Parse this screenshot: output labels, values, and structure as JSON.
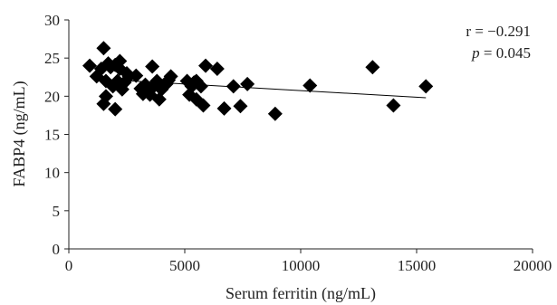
{
  "chart_data": {
    "type": "scatter",
    "xlabel": "Serum ferritin (ng/mL)",
    "ylabel": "FABP4 (ng/mL)",
    "xlim": [
      0,
      20000
    ],
    "ylim": [
      0,
      30
    ],
    "xticks": [
      0,
      5000,
      10000,
      15000,
      20000
    ],
    "yticks": [
      0,
      5,
      10,
      15,
      20,
      25,
      30
    ],
    "grid": false,
    "marker": "diamond",
    "marker_color": "#000000",
    "annotations": {
      "r_label": "r = −0.291",
      "p_label_italic": "p",
      "p_label_rest": " = 0.045"
    },
    "trendline": {
      "x": [
        1000,
        15400
      ],
      "y": [
        22.3,
        19.8
      ]
    },
    "points": [
      [
        900,
        24.0
      ],
      [
        1200,
        22.6
      ],
      [
        1400,
        23.6
      ],
      [
        1500,
        26.3
      ],
      [
        1500,
        19.0
      ],
      [
        1600,
        22.0
      ],
      [
        1600,
        20.0
      ],
      [
        1700,
        24.3
      ],
      [
        1800,
        23.8
      ],
      [
        1900,
        21.3
      ],
      [
        2000,
        24.1
      ],
      [
        2000,
        18.3
      ],
      [
        2100,
        22.0
      ],
      [
        2200,
        24.6
      ],
      [
        2200,
        23.6
      ],
      [
        2300,
        20.9
      ],
      [
        2400,
        21.8
      ],
      [
        2500,
        23.0
      ],
      [
        2600,
        22.6
      ],
      [
        2900,
        22.7
      ],
      [
        3100,
        21.0
      ],
      [
        3200,
        20.3
      ],
      [
        3300,
        21.5
      ],
      [
        3400,
        20.9
      ],
      [
        3500,
        20.2
      ],
      [
        3600,
        23.9
      ],
      [
        3700,
        21.4
      ],
      [
        3800,
        22.0
      ],
      [
        3900,
        19.6
      ],
      [
        4000,
        20.9
      ],
      [
        4200,
        21.6
      ],
      [
        4300,
        22.1
      ],
      [
        4400,
        22.6
      ],
      [
        5100,
        22.0
      ],
      [
        5200,
        20.2
      ],
      [
        5300,
        21.3
      ],
      [
        5400,
        21.8
      ],
      [
        5500,
        22.0
      ],
      [
        5500,
        19.6
      ],
      [
        5700,
        21.3
      ],
      [
        5800,
        18.8
      ],
      [
        5900,
        24.0
      ],
      [
        6400,
        23.6
      ],
      [
        6700,
        18.4
      ],
      [
        7100,
        21.3
      ],
      [
        7400,
        18.7
      ],
      [
        7700,
        21.6
      ],
      [
        8900,
        17.7
      ],
      [
        10400,
        21.4
      ],
      [
        13100,
        23.8
      ],
      [
        14000,
        18.8
      ],
      [
        15400,
        21.3
      ]
    ]
  }
}
